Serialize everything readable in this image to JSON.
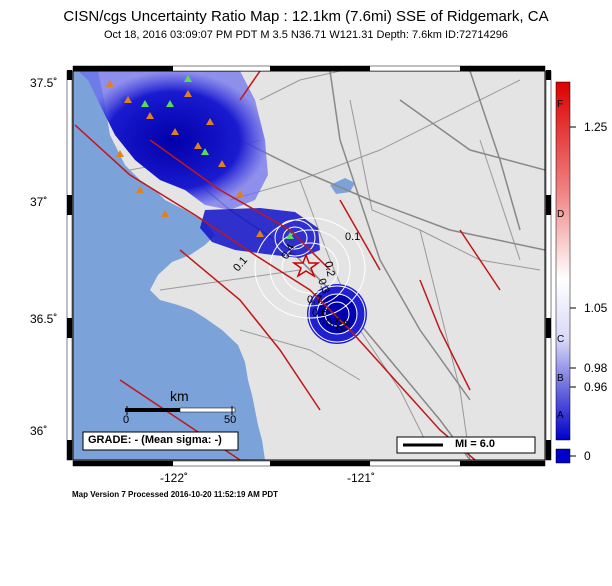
{
  "header": {
    "title": "CISN/cgs Uncertainty Ratio Map : 12.1km (7.6mi) SSE of Ridgemark, CA",
    "subtitle": "Oct 18, 2016 03:09:07 PM PDT   M 3.5   N36.71 W121.31   Depth: 7.6km   ID:72714296"
  },
  "axes": {
    "lat_labels": [
      "37.5˚",
      "37˚",
      "36.5˚",
      "36˚"
    ],
    "lon_labels": [
      "-122˚",
      "-121˚"
    ]
  },
  "scalebar": {
    "unit": "km",
    "tick0": "0",
    "tick1": "50"
  },
  "grade_box": {
    "text": "GRADE: - (Mean sigma: -)"
  },
  "legend": {
    "mi_text": "MI = 6.0"
  },
  "contour_labels": [
    "0.1",
    "0.1",
    "0.2",
    "0.3",
    "0.4",
    "0.5",
    "0.6",
    "0.7",
    "0.4"
  ],
  "colorbar": {
    "values": [
      "1.25",
      "1.05",
      "0.98",
      "0.96",
      "0"
    ],
    "letters": [
      "F",
      "D",
      "C",
      "B",
      "A"
    ]
  },
  "footer": {
    "text": "Map Version 7 Processed 2016-10-20 11:52:19 AM PDT"
  },
  "colors": {
    "ocean": "#7ba3d9",
    "land": "#e4e4e4",
    "fault": "#c01818",
    "uncertainty": "#0000cc"
  }
}
